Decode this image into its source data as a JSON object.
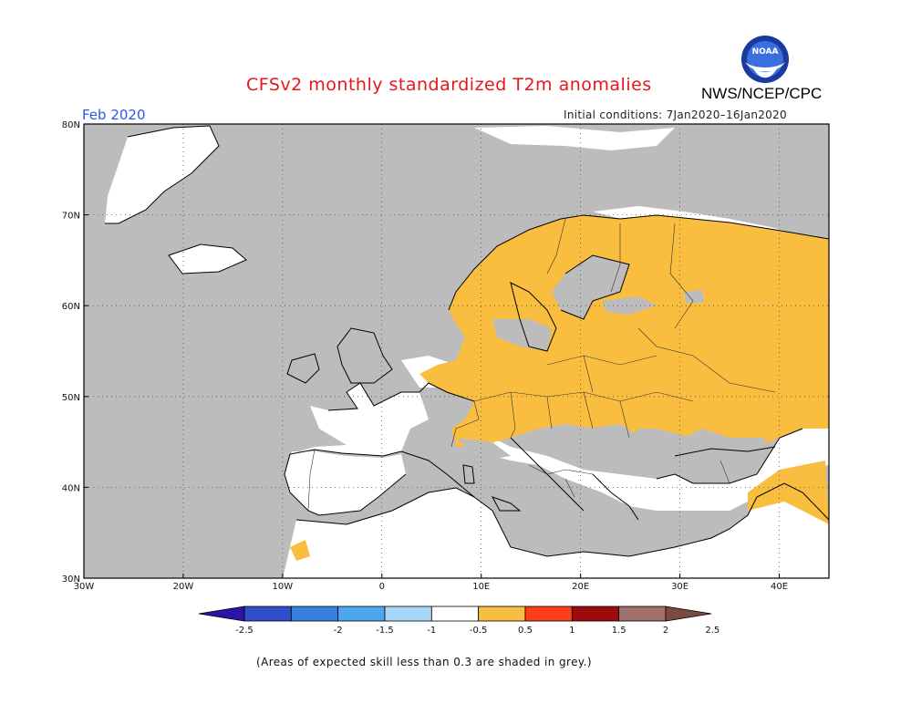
{
  "title": "CFSv2 monthly standardized T2m anomalies",
  "agency": "NWS/NCEP/CPC",
  "logo_text": "NOAA",
  "period": "Feb 2020",
  "initial_conditions": "Initial conditions: 7Jan2020–16Jan2020",
  "footnote": "(Areas of expected skill less than 0.3 are shaded in grey.)",
  "map": {
    "lon_range": [
      -30,
      45
    ],
    "lat_range": [
      30,
      80
    ],
    "lon_ticks": [
      {
        "value": -30,
        "label": "30W"
      },
      {
        "value": -20,
        "label": "20W"
      },
      {
        "value": -10,
        "label": "10W"
      },
      {
        "value": 0,
        "label": "0"
      },
      {
        "value": 10,
        "label": "10E"
      },
      {
        "value": 20,
        "label": "20E"
      },
      {
        "value": 30,
        "label": "30E"
      },
      {
        "value": 40,
        "label": "40E"
      }
    ],
    "lat_ticks": [
      {
        "value": 30,
        "label": "30N"
      },
      {
        "value": 40,
        "label": "40N"
      },
      {
        "value": 50,
        "label": "50N"
      },
      {
        "value": 60,
        "label": "60N"
      },
      {
        "value": 70,
        "label": "70N"
      },
      {
        "value": 80,
        "label": "80N"
      }
    ],
    "grid_lines": "dotted every 10 degrees"
  },
  "colorbar": {
    "labels": [
      "-2.5",
      "-2",
      "-1.5",
      "-1",
      "-0.5",
      "0.5",
      "1",
      "1.5",
      "2",
      "2.5"
    ],
    "colors": [
      "#2a15a8",
      "#2f4fc9",
      "#3a7ee0",
      "#4da7ef",
      "#a8d8f8",
      "#ffffff",
      "#f9bd40",
      "#ff3d1a",
      "#9c0c0c",
      "#a0706a",
      "#7a4a40"
    ]
  },
  "legend_colors": {
    "ocean_low_skill": "#bcbcbc",
    "land_neutral": "#ffffff",
    "warm_0_5_to_1": "#f9bd40",
    "coast": "#000000"
  }
}
